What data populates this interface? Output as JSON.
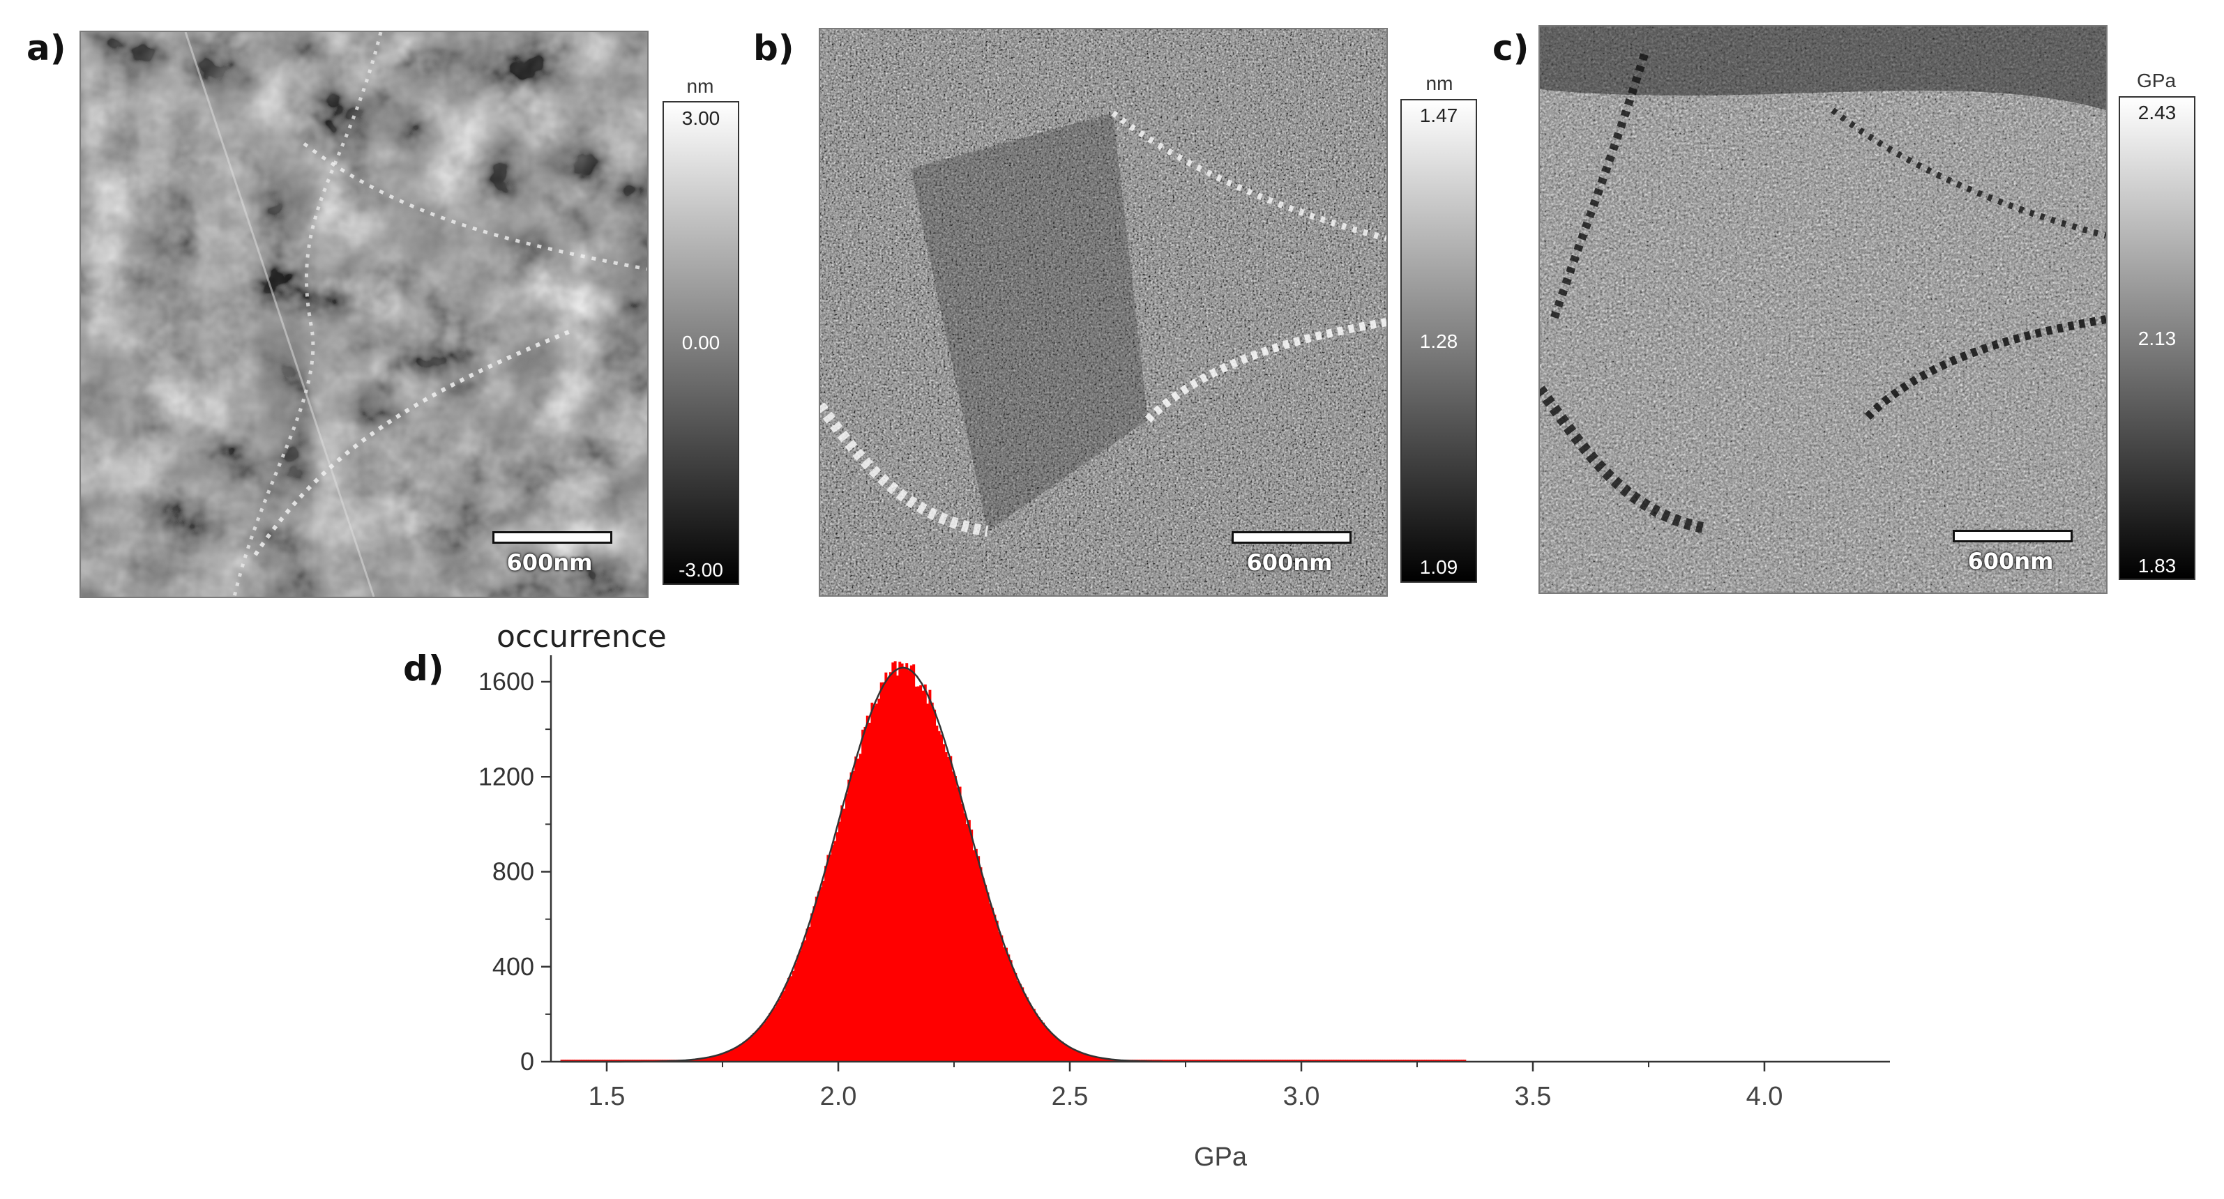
{
  "panels": [
    {
      "id": "a",
      "label": "a)",
      "unit": "nm",
      "max": "3.00",
      "mid": "0.00",
      "min": "-3.00",
      "scalebar": "600nm"
    },
    {
      "id": "b",
      "label": "b)",
      "unit": "nm",
      "max": "1.47",
      "mid": "1.28",
      "min": "1.09",
      "scalebar": "600nm"
    },
    {
      "id": "c",
      "label": "c)",
      "unit": "GPa",
      "max": "2.43",
      "mid": "2.13",
      "min": "1.83",
      "scalebar": "600nm"
    }
  ],
  "histogram_label": "d)",
  "chart_data": {
    "type": "bar",
    "title": "",
    "ylabel": "occurrence",
    "xlabel": "GPa",
    "xlim": [
      1.4,
      4.2
    ],
    "ylim": [
      0,
      1700
    ],
    "xticks": [
      "1.5",
      "2.0",
      "2.5",
      "3.0",
      "3.5",
      "4.0"
    ],
    "yticks": [
      "0",
      "400",
      "800",
      "1200",
      "1600"
    ],
    "bar_color": "#ff0000",
    "fit_color": "#333333",
    "data_range": [
      1.4,
      3.35
    ],
    "peak_center": 2.14,
    "peak_height": 1660,
    "peak_sigma": 0.14,
    "grid": false,
    "legend": "none"
  }
}
